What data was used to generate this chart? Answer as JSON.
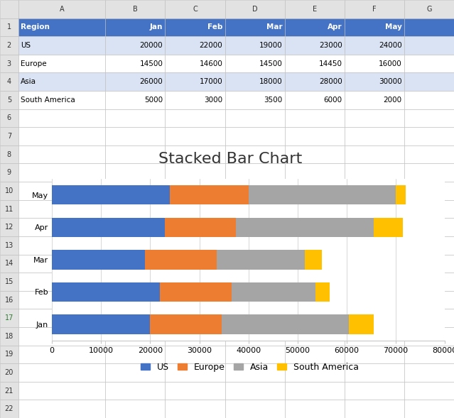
{
  "title": "Stacked Bar Chart",
  "months": [
    "Jan",
    "Feb",
    "Mar",
    "Apr",
    "May"
  ],
  "regions": [
    "US",
    "Europe",
    "Asia",
    "South America"
  ],
  "data": {
    "US": [
      20000,
      22000,
      19000,
      23000,
      24000
    ],
    "Europe": [
      14500,
      14600,
      14500,
      14450,
      16000
    ],
    "Asia": [
      26000,
      17000,
      18000,
      28000,
      30000
    ],
    "South America": [
      5000,
      3000,
      3500,
      6000,
      2000
    ]
  },
  "colors": {
    "US": "#4472C4",
    "Europe": "#ED7D31",
    "Asia": "#A5A5A5",
    "South America": "#FFC000"
  },
  "table_header_bg": "#4472C4",
  "table_header_fg": "#FFFFFF",
  "cell_bg_even": "#DAE3F3",
  "cell_bg_odd": "#FFFFFF",
  "table_border": "#BBBBBB",
  "col_header_bg": "#E2E2E2",
  "row_num_bg": "#E2E2E2",
  "grid_color": "#C8C8C8",
  "bg_color": "#FFFFFF",
  "excel_bg": "#F2F2F2",
  "xlim": [
    0,
    80000
  ],
  "xticks": [
    0,
    10000,
    20000,
    30000,
    40000,
    50000,
    60000,
    70000,
    80000
  ],
  "spreadsheet_data": [
    [
      "Region",
      "Jan",
      "Feb",
      "Mar",
      "Apr",
      "May",
      ""
    ],
    [
      "US",
      "20000",
      "22000",
      "19000",
      "23000",
      "24000",
      ""
    ],
    [
      "Europe",
      "14500",
      "14600",
      "14500",
      "14450",
      "16000",
      ""
    ],
    [
      "Asia",
      "26000",
      "17000",
      "18000",
      "28000",
      "30000",
      ""
    ],
    [
      "South America",
      "5000",
      "3000",
      "3500",
      "6000",
      "2000",
      ""
    ],
    [
      "",
      "",
      "",
      "",
      "",
      "",
      ""
    ],
    [
      "",
      "",
      "",
      "",
      "",
      "",
      ""
    ]
  ],
  "row_bg": [
    "header",
    "light",
    "white",
    "light",
    "white",
    "white",
    "white"
  ],
  "n_excel_rows": 23,
  "n_excel_cols": 8,
  "col_letters": [
    "",
    "A",
    "B",
    "C",
    "D",
    "E",
    "F",
    "G"
  ],
  "col_widths_rel": [
    0.22,
    1.05,
    0.72,
    0.72,
    0.72,
    0.72,
    0.72,
    0.6
  ],
  "chart_title_fontsize": 16,
  "tick_fontsize": 8,
  "legend_fontsize": 9
}
